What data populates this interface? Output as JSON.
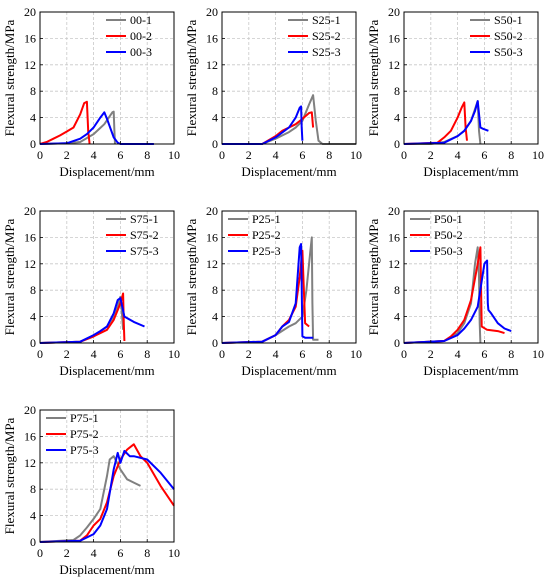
{
  "colors": {
    "grey": "#808080",
    "red": "#ff0000",
    "blue": "#0000ff",
    "grid": "#c8c8c8"
  },
  "chart_data": [
    {
      "type": "line",
      "xlabel": "Displacement/mm",
      "ylabel": "Flexural strength/MPa",
      "xlim": [
        0,
        10
      ],
      "ylim": [
        0,
        20
      ],
      "xticks": [
        0,
        2,
        4,
        6,
        8,
        10
      ],
      "yticks": [
        0,
        4,
        8,
        12,
        16,
        20
      ],
      "grid": true,
      "legend": "top-right",
      "series": [
        {
          "name": "00-1",
          "color": "#808080",
          "x": [
            0,
            2,
            3,
            4,
            4.8,
            5.4,
            5.5,
            5.55,
            5.6
          ],
          "y": [
            0,
            0.1,
            0.3,
            1.5,
            3.0,
            4.8,
            4.9,
            2.0,
            0
          ]
        },
        {
          "name": "00-2",
          "color": "#ff0000",
          "x": [
            0,
            0.5,
            1,
            1.5,
            2,
            2.5,
            3,
            3.3,
            3.5,
            3.6,
            3.7
          ],
          "y": [
            0,
            0.3,
            0.8,
            1.3,
            1.9,
            2.5,
            4.5,
            6.2,
            6.4,
            2.0,
            0
          ]
        },
        {
          "name": "00-3",
          "color": "#0000ff",
          "x": [
            0,
            2,
            3,
            3.5,
            4,
            4.5,
            4.8,
            5.0,
            5.5,
            5.8,
            6,
            7,
            8.5
          ],
          "y": [
            0,
            0.1,
            0.8,
            1.5,
            2.5,
            4.0,
            4.8,
            3.8,
            1.0,
            0.2,
            0,
            0,
            0
          ]
        }
      ]
    },
    {
      "type": "line",
      "xlabel": "Displacement/mm",
      "ylabel": "Flexural strength/MPa",
      "xlim": [
        0,
        10
      ],
      "ylim": [
        0,
        20
      ],
      "xticks": [
        0,
        2,
        4,
        6,
        8,
        10
      ],
      "yticks": [
        0,
        4,
        8,
        12,
        16,
        20
      ],
      "grid": true,
      "legend": "top-right",
      "series": [
        {
          "name": "S25-1",
          "color": "#808080",
          "x": [
            0,
            3,
            4,
            5,
            5.5,
            6,
            6.5,
            6.8,
            7.0,
            7.2,
            7.5,
            10
          ],
          "y": [
            0,
            0,
            0.8,
            1.8,
            2.5,
            3.5,
            6.0,
            7.4,
            3.5,
            0.5,
            0,
            0
          ]
        },
        {
          "name": "S25-2",
          "color": "#ff0000",
          "x": [
            0,
            3,
            4,
            4.5,
            5,
            5.5,
            6,
            6.5,
            6.7,
            6.8
          ],
          "y": [
            0,
            0,
            1.2,
            2.0,
            2.5,
            3.0,
            3.8,
            4.7,
            4.8,
            2.5
          ]
        },
        {
          "name": "S25-3",
          "color": "#0000ff",
          "x": [
            0,
            3,
            4,
            5,
            5.5,
            5.8,
            5.9,
            5.95,
            6.0
          ],
          "y": [
            0,
            0,
            1.0,
            2.5,
            4.0,
            5.5,
            5.7,
            2.5,
            0.5
          ]
        }
      ]
    },
    {
      "type": "line",
      "xlabel": "Displacement/mm",
      "ylabel": "Flexural strength/MPa",
      "xlim": [
        0,
        10
      ],
      "ylim": [
        0,
        20
      ],
      "xticks": [
        0,
        2,
        4,
        6,
        8,
        10
      ],
      "yticks": [
        0,
        4,
        8,
        12,
        16,
        20
      ],
      "grid": true,
      "legend": "top-right",
      "series": [
        {
          "name": "S50-1",
          "color": "#808080",
          "x": [
            0,
            2,
            3,
            4,
            4.5,
            5,
            5.5,
            5.6,
            5.7
          ],
          "y": [
            0,
            0,
            0.3,
            1.2,
            2.0,
            3.5,
            6.5,
            2.0,
            0
          ]
        },
        {
          "name": "S50-2",
          "color": "#ff0000",
          "x": [
            0,
            2.5,
            3,
            3.5,
            4,
            4.3,
            4.5,
            4.6,
            4.7
          ],
          "y": [
            0,
            0.2,
            1.0,
            2.0,
            4.0,
            5.5,
            6.3,
            2.5,
            0.5
          ]
        },
        {
          "name": "S50-3",
          "color": "#0000ff",
          "x": [
            0,
            3,
            4,
            4.5,
            5,
            5.3,
            5.5,
            5.7,
            5.9,
            6.3
          ],
          "y": [
            0,
            0.2,
            1.2,
            2.0,
            3.5,
            5.0,
            6.5,
            2.5,
            2.3,
            2.0
          ]
        }
      ]
    },
    {
      "type": "line",
      "xlabel": "Displacement/mm",
      "ylabel": "Flexural strength/MPa",
      "xlim": [
        0,
        10
      ],
      "ylim": [
        0,
        20
      ],
      "xticks": [
        0,
        2,
        4,
        6,
        8,
        10
      ],
      "yticks": [
        0,
        4,
        8,
        12,
        16,
        20
      ],
      "grid": true,
      "legend": "top-right",
      "series": [
        {
          "name": "S75-1",
          "color": "#808080",
          "x": [
            0,
            3,
            4,
            5,
            5.5,
            5.8,
            6.0,
            6.1,
            6.2
          ],
          "y": [
            0,
            0.2,
            1.0,
            2.5,
            4.0,
            5.5,
            7.0,
            5.0,
            2.0
          ]
        },
        {
          "name": "S75-2",
          "color": "#ff0000",
          "x": [
            0,
            3,
            4,
            5,
            5.5,
            6,
            6.2,
            6.25,
            6.3
          ],
          "y": [
            0,
            0.2,
            1.0,
            2.0,
            3.5,
            6.0,
            7.5,
            3.0,
            0.3
          ]
        },
        {
          "name": "S75-3",
          "color": "#0000ff",
          "x": [
            0,
            3,
            4,
            4.5,
            5,
            5.5,
            5.8,
            6.0,
            6.3,
            7,
            7.8
          ],
          "y": [
            0,
            0.2,
            1.2,
            1.8,
            2.5,
            4.5,
            6.5,
            6.8,
            4.0,
            3.2,
            2.5
          ]
        }
      ]
    },
    {
      "type": "line",
      "xlabel": "Displacement/mm",
      "ylabel": "Flexural strength/MPa",
      "xlim": [
        0,
        10
      ],
      "ylim": [
        0,
        20
      ],
      "xticks": [
        0,
        2,
        4,
        6,
        8,
        10
      ],
      "yticks": [
        0,
        4,
        8,
        12,
        16,
        20
      ],
      "grid": true,
      "legend": "top-left",
      "series": [
        {
          "name": "P25-1",
          "color": "#808080",
          "x": [
            0,
            3,
            4,
            5,
            5.5,
            6,
            6.3,
            6.6,
            6.7,
            6.75,
            6.8,
            7.2
          ],
          "y": [
            0,
            0.2,
            1.2,
            2.5,
            3.0,
            4.0,
            8.0,
            14.0,
            16.0,
            6.0,
            0.5,
            0.5
          ]
        },
        {
          "name": "P25-2",
          "color": "#ff0000",
          "x": [
            0,
            3,
            4,
            4.5,
            5,
            5.5,
            5.8,
            6.0,
            6.2,
            6.5
          ],
          "y": [
            0,
            0.2,
            1.2,
            2.5,
            3.5,
            5.5,
            10.0,
            14.0,
            3.0,
            2.5
          ]
        },
        {
          "name": "P25-3",
          "color": "#0000ff",
          "x": [
            0,
            3,
            4,
            4.5,
            5,
            5.5,
            5.8,
            5.9,
            6.0,
            6.2,
            6.8
          ],
          "y": [
            0,
            0.2,
            1.2,
            2.5,
            3.2,
            6.0,
            14.5,
            15.0,
            1.0,
            0.8,
            0.8
          ]
        }
      ]
    },
    {
      "type": "line",
      "xlabel": "Displacement/mm",
      "ylabel": "Flexural strength/MPa",
      "xlim": [
        0,
        10
      ],
      "ylim": [
        0,
        20
      ],
      "xticks": [
        0,
        2,
        4,
        6,
        8,
        10
      ],
      "yticks": [
        0,
        4,
        8,
        12,
        16,
        20
      ],
      "grid": true,
      "legend": "top-left",
      "series": [
        {
          "name": "P50-1",
          "color": "#808080",
          "x": [
            0,
            3,
            4,
            4.5,
            5,
            5.3,
            5.5,
            5.6,
            5.65,
            5.7
          ],
          "y": [
            0,
            0.3,
            1.5,
            3.0,
            6.0,
            12.0,
            14.5,
            10.0,
            3.0,
            0
          ]
        },
        {
          "name": "P50-2",
          "color": "#ff0000",
          "x": [
            0,
            3,
            3.5,
            4,
            4.5,
            5,
            5.5,
            5.7,
            5.8,
            6.2,
            7,
            7.5
          ],
          "y": [
            0,
            0.3,
            1.0,
            2.0,
            3.5,
            6.5,
            12.0,
            14.5,
            2.5,
            2.0,
            1.8,
            1.5
          ]
        },
        {
          "name": "P50-3",
          "color": "#0000ff",
          "x": [
            0,
            3,
            4,
            4.5,
            5,
            5.5,
            6.0,
            6.2,
            6.25,
            6.3,
            6.5,
            7,
            7.5,
            8
          ],
          "y": [
            0,
            0.3,
            1.2,
            2.2,
            3.5,
            5.5,
            12.0,
            12.5,
            6.0,
            5.0,
            4.5,
            3.0,
            2.2,
            1.8
          ]
        }
      ]
    },
    {
      "type": "line",
      "xlabel": "Displacement/mm",
      "ylabel": "Flexural strength/MPa",
      "xlim": [
        0,
        10
      ],
      "ylim": [
        0,
        20
      ],
      "xticks": [
        0,
        2,
        4,
        6,
        8,
        10
      ],
      "yticks": [
        0,
        4,
        8,
        12,
        16,
        20
      ],
      "grid": true,
      "legend": "top-left",
      "series": [
        {
          "name": "P75-1",
          "color": "#808080",
          "x": [
            0,
            2.5,
            3,
            3.5,
            4,
            4.5,
            5,
            5.2,
            5.5,
            6,
            6.5,
            7,
            7.5
          ],
          "y": [
            0,
            0.3,
            1.0,
            2.2,
            3.5,
            5.0,
            10.0,
            12.5,
            13.0,
            11.0,
            9.5,
            9.0,
            8.5
          ]
        },
        {
          "name": "P75-2",
          "color": "#ff0000",
          "x": [
            0,
            3,
            3.5,
            4,
            4.5,
            5,
            5.5,
            6,
            6.5,
            7,
            7.5,
            8,
            9,
            10
          ],
          "y": [
            0,
            0.2,
            1.0,
            2.5,
            3.5,
            6.0,
            10.0,
            12.5,
            14.0,
            14.8,
            13.0,
            12.0,
            8.5,
            5.5
          ]
        },
        {
          "name": "P75-3",
          "color": "#0000ff",
          "x": [
            0,
            3,
            4,
            4.5,
            5,
            5.5,
            5.8,
            6,
            6.3,
            6.7,
            7,
            8,
            9,
            10
          ],
          "y": [
            0,
            0.2,
            1.2,
            2.5,
            5.0,
            11.0,
            13.5,
            12.0,
            13.8,
            13.0,
            13.0,
            12.5,
            10.5,
            8.0
          ]
        }
      ]
    }
  ]
}
